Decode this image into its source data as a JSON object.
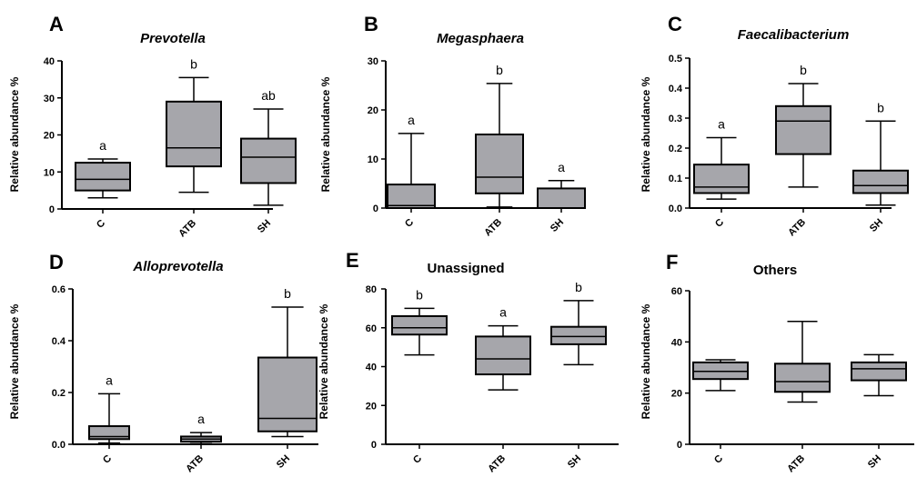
{
  "figure": {
    "panels": [
      {
        "letter": "A",
        "title": "Prevotella",
        "italic": true,
        "ylabel": "Relative abundance %",
        "ylim": [
          0,
          40
        ],
        "yticks": [
          0,
          10,
          20,
          30,
          40
        ],
        "ytick_labels": [
          "0",
          "10",
          "20",
          "30",
          "40"
        ]
      },
      {
        "letter": "B",
        "title": "Megasphaera",
        "italic": true,
        "ylabel": "Relative abundance %",
        "ylim": [
          0,
          30
        ],
        "yticks": [
          0,
          10,
          20,
          30
        ],
        "ytick_labels": [
          "0",
          "10",
          "20",
          "30"
        ]
      },
      {
        "letter": "C",
        "title": "Faecalibacterium",
        "italic": true,
        "ylabel": "Relative abundance %",
        "ylim": [
          0,
          0.5
        ],
        "yticks": [
          0,
          0.1,
          0.2,
          0.3,
          0.4,
          0.5
        ],
        "ytick_labels": [
          "0.0",
          "0.1",
          "0.2",
          "0.3",
          "0.4",
          "0.5"
        ]
      },
      {
        "letter": "D",
        "title": "Alloprevotella",
        "italic": true,
        "ylabel": "Relative abundance %",
        "ylim": [
          0,
          0.6
        ],
        "yticks": [
          0,
          0.2,
          0.4,
          0.6
        ],
        "ytick_labels": [
          "0.0",
          "0.2",
          "0.4",
          "0.6"
        ]
      },
      {
        "letter": "E",
        "title": "Unassigned",
        "italic": false,
        "ylabel": "Relative abundance %",
        "ylim": [
          0,
          80
        ],
        "yticks": [
          0,
          20,
          40,
          60,
          80
        ],
        "ytick_labels": [
          "0",
          "20",
          "40",
          "60",
          "80"
        ]
      },
      {
        "letter": "F",
        "title": "Others",
        "italic": false,
        "ylabel": "Relative abundance %",
        "ylim": [
          0,
          60
        ],
        "yticks": [
          0,
          20,
          40,
          60
        ],
        "ytick_labels": [
          "0",
          "20",
          "40",
          "60"
        ]
      }
    ]
  },
  "chart_data": [
    {
      "type": "box",
      "title": "Prevotella",
      "ylabel": "Relative abundance %",
      "categories": [
        "C",
        "ATB",
        "SH"
      ],
      "ylim": [
        0,
        40
      ],
      "boxes": [
        {
          "min": 3,
          "q1": 5,
          "median": 8,
          "q3": 12.5,
          "max": 13.5,
          "label": "a"
        },
        {
          "min": 4.5,
          "q1": 11.5,
          "median": 16.5,
          "q3": 29,
          "max": 35.5,
          "label": "b"
        },
        {
          "min": 1,
          "q1": 7,
          "median": 14,
          "q3": 19,
          "max": 27,
          "label": "ab"
        }
      ]
    },
    {
      "type": "box",
      "title": "Megasphaera",
      "ylabel": "Relative abundance %",
      "categories": [
        "C",
        "ATB",
        "SH"
      ],
      "ylim": [
        0,
        30
      ],
      "boxes": [
        {
          "min": 0,
          "q1": 0,
          "median": 0.5,
          "q3": 4.8,
          "max": 15.2,
          "label": "a"
        },
        {
          "min": 0.2,
          "q1": 3,
          "median": 6.3,
          "q3": 15,
          "max": 25.4,
          "label": "b"
        },
        {
          "min": 0,
          "q1": 0,
          "median": 0,
          "q3": 4,
          "max": 5.6,
          "label": "a"
        }
      ]
    },
    {
      "type": "box",
      "title": "Faecalibacterium",
      "ylabel": "Relative abundance %",
      "categories": [
        "C",
        "ATB",
        "SH"
      ],
      "ylim": [
        0,
        0.5
      ],
      "boxes": [
        {
          "min": 0.03,
          "q1": 0.05,
          "median": 0.07,
          "q3": 0.145,
          "max": 0.235,
          "label": "a"
        },
        {
          "min": 0.07,
          "q1": 0.18,
          "median": 0.29,
          "q3": 0.34,
          "max": 0.415,
          "label": "b"
        },
        {
          "min": 0.01,
          "q1": 0.05,
          "median": 0.075,
          "q3": 0.125,
          "max": 0.29,
          "label": "b"
        }
      ]
    },
    {
      "type": "box",
      "title": "Alloprevotella",
      "ylabel": "Relative abundance %",
      "categories": [
        "C",
        "ATB",
        "SH"
      ],
      "ylim": [
        0,
        0.6
      ],
      "boxes": [
        {
          "min": 0.005,
          "q1": 0.02,
          "median": 0.03,
          "q3": 0.07,
          "max": 0.195,
          "label": "a"
        },
        {
          "min": 0.002,
          "q1": 0.01,
          "median": 0.02,
          "q3": 0.03,
          "max": 0.045,
          "label": "a"
        },
        {
          "min": 0.03,
          "q1": 0.05,
          "median": 0.1,
          "q3": 0.335,
          "max": 0.53,
          "label": "b"
        }
      ]
    },
    {
      "type": "box",
      "title": "Unassigned",
      "ylabel": "Relative abundance %",
      "categories": [
        "C",
        "ATB",
        "SH"
      ],
      "ylim": [
        0,
        80
      ],
      "boxes": [
        {
          "min": 46,
          "q1": 56.5,
          "median": 60,
          "q3": 66,
          "max": 70,
          "label": "b"
        },
        {
          "min": 28,
          "q1": 36,
          "median": 44,
          "q3": 55.5,
          "max": 61,
          "label": "a"
        },
        {
          "min": 41,
          "q1": 51.5,
          "median": 55.5,
          "q3": 60.5,
          "max": 74,
          "label": "b"
        }
      ]
    },
    {
      "type": "box",
      "title": "Others",
      "ylabel": "Relative abundance %",
      "categories": [
        "C",
        "ATB",
        "SH"
      ],
      "ylim": [
        0,
        60
      ],
      "boxes": [
        {
          "min": 21,
          "q1": 25.5,
          "median": 28.5,
          "q3": 32,
          "max": 33,
          "label": ""
        },
        {
          "min": 16.5,
          "q1": 20.5,
          "median": 24.5,
          "q3": 31.5,
          "max": 48,
          "label": ""
        },
        {
          "min": 19,
          "q1": 25,
          "median": 29.5,
          "q3": 32,
          "max": 35,
          "label": ""
        }
      ]
    }
  ],
  "colors": {
    "box_fill": "#a6a6ab",
    "line": "#000000",
    "background": "#ffffff"
  }
}
